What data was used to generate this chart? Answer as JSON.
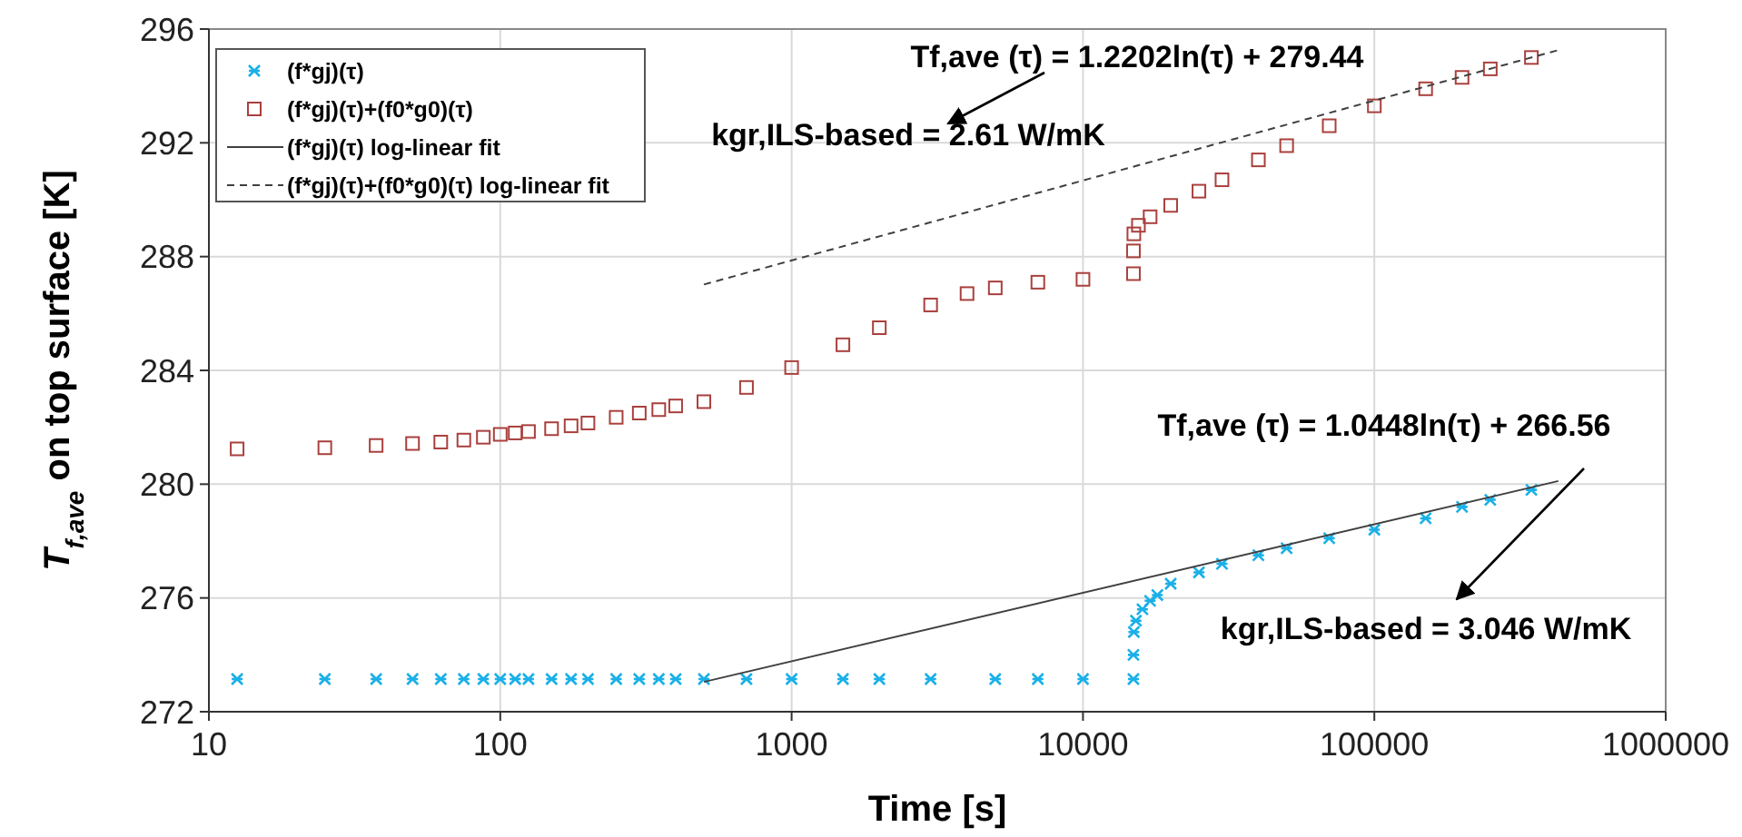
{
  "chart_data": {
    "type": "scatter",
    "xlabel": "Time [s]",
    "ylabel": "T$_{f,ave}$ on top surface [K]",
    "log": "x",
    "grid": true,
    "legend": "top left",
    "xlim": [
      10,
      1000000
    ],
    "xticks": [
      10,
      100,
      1000,
      10000,
      100000,
      1000000
    ],
    "ylim": [
      272,
      296
    ],
    "yticks": [
      272,
      276,
      280,
      284,
      288,
      292,
      296
    ],
    "series": [
      {
        "name": "(f*gj)(τ)",
        "color": "#1ab0e8",
        "marker": "cross",
        "x": [
          12.5,
          25,
          37.5,
          50,
          62.5,
          75,
          87.5,
          100,
          112.5,
          125,
          150,
          175,
          200,
          250,
          300,
          350,
          400,
          500,
          700,
          1000,
          1500,
          2000,
          3000,
          5000,
          7000,
          10000,
          14900,
          14900,
          14950,
          15200,
          16000,
          17000,
          18000,
          20000,
          25000,
          30000,
          40000,
          50000,
          70000,
          100000,
          150000,
          200000,
          250000,
          346000
        ],
        "values": [
          273.15,
          273.15,
          273.15,
          273.15,
          273.15,
          273.15,
          273.15,
          273.15,
          273.15,
          273.15,
          273.15,
          273.15,
          273.15,
          273.15,
          273.15,
          273.15,
          273.15,
          273.15,
          273.15,
          273.15,
          273.15,
          273.15,
          273.15,
          273.15,
          273.15,
          273.15,
          273.15,
          274.0,
          274.8,
          275.2,
          275.6,
          275.9,
          276.1,
          276.5,
          276.9,
          277.2,
          277.5,
          277.75,
          278.1,
          278.4,
          278.8,
          279.2,
          279.45,
          279.8
        ]
      },
      {
        "name": "(f*gj)(τ)+(f0*g0)(τ)",
        "color": "#a9403d",
        "marker": "square",
        "x": [
          12.5,
          25,
          37.5,
          50,
          62.5,
          75,
          87.5,
          100,
          112.5,
          125,
          150,
          175,
          200,
          250,
          300,
          350,
          400,
          500,
          700,
          1000,
          1500,
          2000,
          3000,
          4000,
          5000,
          7000,
          10000,
          14900,
          14900,
          14950,
          15500,
          17000,
          20000,
          25000,
          30000,
          40000,
          50000,
          70000,
          100000,
          150000,
          200000,
          250000,
          346000
        ],
        "values": [
          281.24,
          281.28,
          281.36,
          281.43,
          281.48,
          281.55,
          281.65,
          281.75,
          281.8,
          281.85,
          281.95,
          282.05,
          282.15,
          282.35,
          282.5,
          282.62,
          282.75,
          282.9,
          283.4,
          284.1,
          284.9,
          285.5,
          286.3,
          286.7,
          286.9,
          287.1,
          287.2,
          287.4,
          288.2,
          288.8,
          289.1,
          289.4,
          289.8,
          290.3,
          290.7,
          291.4,
          291.9,
          292.6,
          293.3,
          293.9,
          294.3,
          294.6,
          295.0
        ]
      },
      {
        "name": "(f*gj)(τ) log-linear fit",
        "type": "line",
        "color": "#404040",
        "line_style": "solid",
        "marker": "none",
        "x": [
          500,
          428000
        ],
        "values": [
          273.05,
          280.11
        ]
      },
      {
        "name": "(f*gj)(τ)+(f0*g0)(τ) log-linear fit",
        "type": "line",
        "color": "#404040",
        "line_style": "dashed",
        "marker": "none",
        "x": [
          500,
          428000
        ],
        "values": [
          287.02,
          295.26
        ]
      }
    ],
    "annotations": [
      "Tf,ave (τ) = 1.2202ln(τ) + 279.44",
      "kgr,ILS-based = 2.61 W/mK",
      "Tf,ave (τ) = 1.0448ln(τ) + 266.56",
      "kgr,ILS-based = 3.046 W/mK"
    ]
  }
}
